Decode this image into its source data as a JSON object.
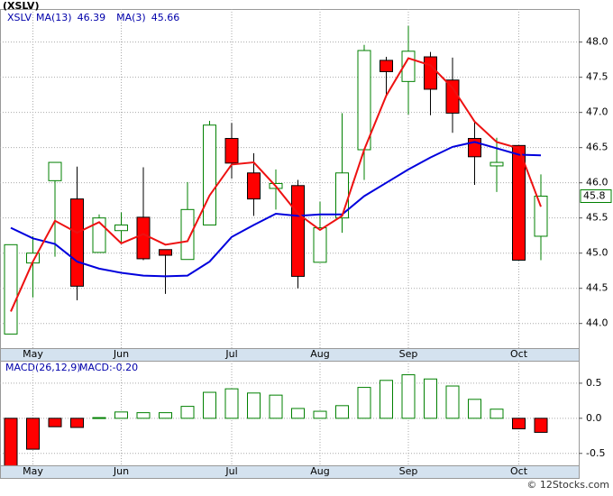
{
  "chart_data": [
    {
      "type": "candlestick",
      "title": "(XSLV)",
      "ticker": "XSLV",
      "categories": [
        null,
        "May",
        null,
        null,
        null,
        "Jun",
        null,
        null,
        null,
        null,
        "Jul",
        null,
        null,
        null,
        "Aug",
        null,
        null,
        null,
        "Sep",
        null,
        null,
        null,
        null,
        "Oct",
        null
      ],
      "open": [
        43.85,
        44.86,
        46.03,
        45.77,
        45.01,
        45.32,
        45.51,
        45.05,
        44.91,
        45.4,
        46.63,
        46.14,
        45.92,
        45.96,
        44.87,
        45.5,
        46.47,
        47.74,
        47.44,
        47.79,
        47.46,
        46.63,
        46.24,
        46.53,
        45.24
      ],
      "high": [
        45.12,
        45.24,
        46.29,
        46.23,
        45.55,
        45.58,
        46.22,
        45.05,
        46.01,
        46.88,
        46.85,
        46.42,
        46.19,
        46.04,
        45.73,
        46.99,
        47.96,
        47.79,
        48.23,
        47.86,
        47.78,
        46.88,
        46.64,
        46.53,
        46.12
      ],
      "low": [
        43.85,
        44.37,
        44.95,
        44.33,
        45.01,
        45.13,
        44.9,
        44.42,
        44.91,
        45.4,
        46.06,
        45.53,
        45.62,
        44.5,
        44.87,
        45.29,
        46.04,
        47.24,
        46.97,
        46.96,
        46.71,
        45.97,
        45.87,
        44.9,
        44.9
      ],
      "close": [
        45.12,
        45.0,
        46.29,
        44.53,
        45.5,
        45.4,
        44.92,
        44.97,
        45.62,
        46.82,
        46.28,
        45.77,
        45.99,
        44.67,
        45.36,
        46.14,
        47.88,
        47.58,
        47.87,
        47.33,
        46.99,
        46.37,
        46.29,
        44.9,
        45.81
      ],
      "up_color": "#008000",
      "down_color": "#ff0000",
      "last_price_label": "45.8",
      "series": [
        {
          "name": "MA(13)",
          "color": "#0000dd",
          "values": [
            45.36,
            45.21,
            45.13,
            44.88,
            44.78,
            44.72,
            44.68,
            44.67,
            44.68,
            44.88,
            45.23,
            45.4,
            45.56,
            45.53,
            45.55,
            45.55,
            45.81,
            46.0,
            46.19,
            46.36,
            46.51,
            46.58,
            46.49,
            46.4,
            46.39
          ]
        },
        {
          "name": "MA(3)",
          "color": "#ee1111",
          "values": [
            44.17,
            44.88,
            45.46,
            45.29,
            45.44,
            45.14,
            45.27,
            45.12,
            45.17,
            45.82,
            46.26,
            46.29,
            45.95,
            45.56,
            45.33,
            45.53,
            46.47,
            47.24,
            47.77,
            47.67,
            47.35,
            46.87,
            46.58,
            46.49,
            45.66
          ]
        }
      ],
      "ylim": [
        43.65,
        48.47
      ],
      "yticks": [
        {
          "value": 44,
          "label": "44.0"
        },
        44.5,
        {
          "value": 45,
          "label": "45.0"
        },
        45.5,
        {
          "value": 46,
          "label": "46.0"
        },
        46.5,
        {
          "value": 47,
          "label": "47.0"
        },
        47.5,
        {
          "value": 48,
          "label": "48.0"
        }
      ],
      "grid": true
    },
    {
      "type": "bar",
      "title": "MACD(26,12,9)",
      "macd_label": "MACD:-0.20",
      "categories": [
        null,
        "May",
        null,
        null,
        null,
        "Jun",
        null,
        null,
        null,
        null,
        "Jul",
        null,
        null,
        null,
        "Aug",
        null,
        null,
        null,
        "Sep",
        null,
        null,
        null,
        null,
        "Oct",
        null
      ],
      "values": [
        -0.7,
        -0.44,
        -0.12,
        -0.13,
        0.01,
        0.09,
        0.08,
        0.08,
        0.17,
        0.37,
        0.42,
        0.36,
        0.33,
        0.14,
        0.1,
        0.18,
        0.44,
        0.54,
        0.62,
        0.56,
        0.46,
        0.27,
        0.13,
        -0.15,
        -0.2
      ],
      "up_color": "#008000",
      "down_color": "#ff0000",
      "ylim": [
        -0.67,
        0.82
      ],
      "yticks": [
        -0.5,
        {
          "value": 0,
          "label": "0.0"
        },
        0.5
      ],
      "grid": true
    }
  ],
  "footer": "© 12Stocks.com"
}
